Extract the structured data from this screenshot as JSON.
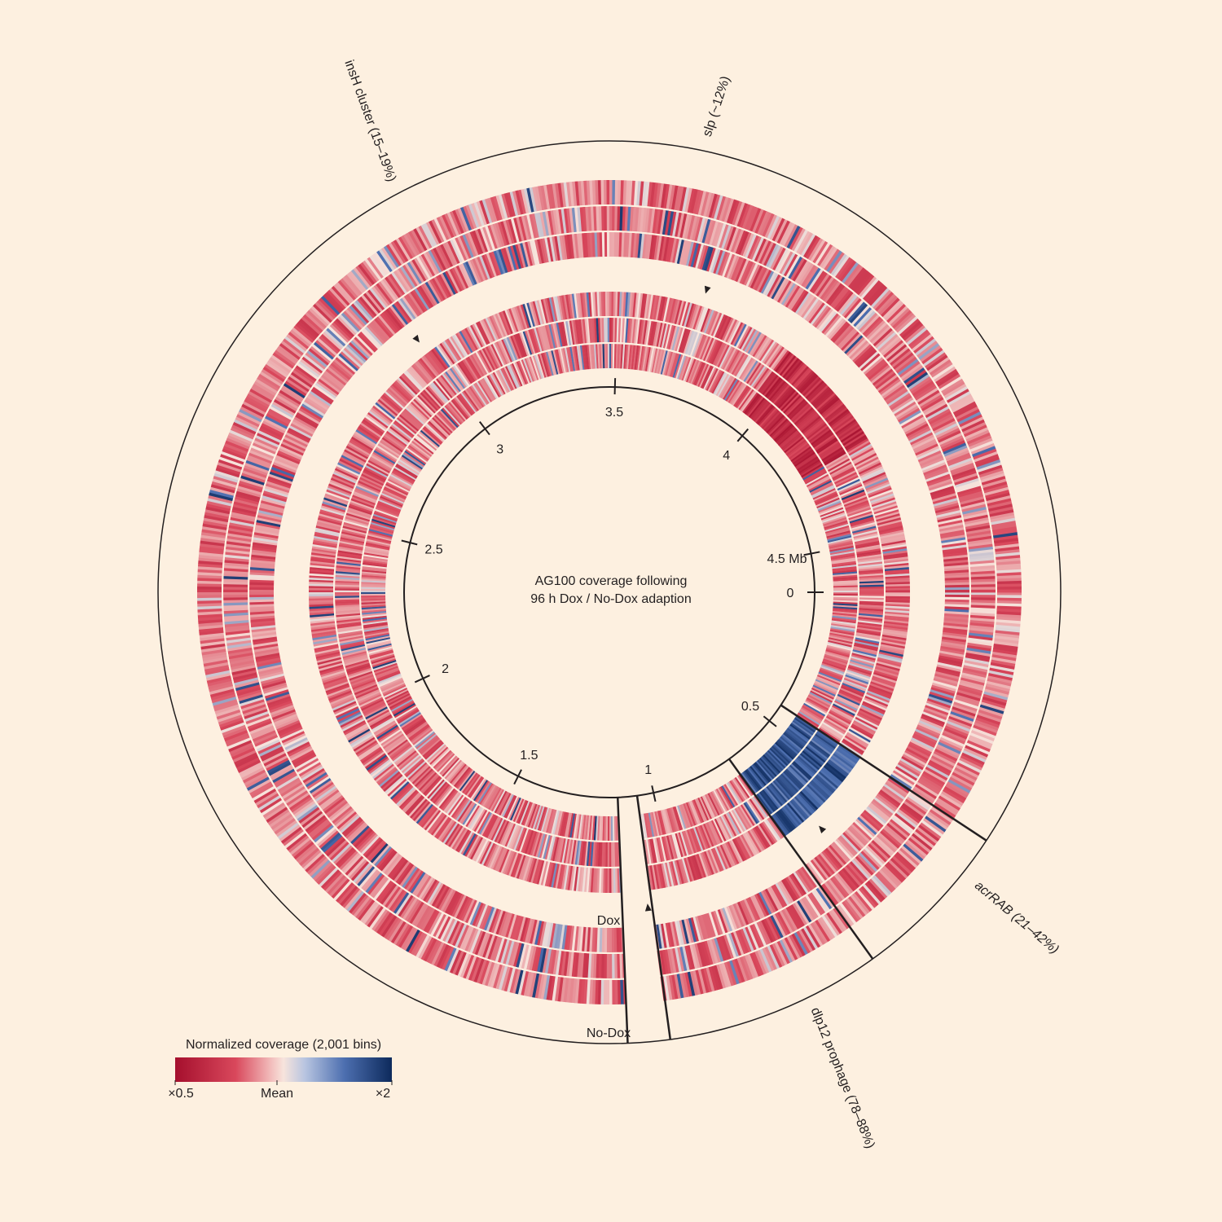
{
  "title": {
    "line1": "AG100 coverage following",
    "line2": "96 h Dox / No-Dox adaption"
  },
  "colors": {
    "background": "#fdf0e0",
    "low": "#a50f2d",
    "mean": "#f7e4dc",
    "high": "#0d2a5c",
    "line": "#231f20"
  },
  "genome": {
    "size_mb": 4.64,
    "orientation": "clockwise, 0 at 3 o'clock",
    "ticks": [
      {
        "pos": 0,
        "label": "0"
      },
      {
        "pos": 0.5,
        "label": "0.5"
      },
      {
        "pos": 1,
        "label": "1"
      },
      {
        "pos": 1.5,
        "label": "1.5"
      },
      {
        "pos": 2,
        "label": "2"
      },
      {
        "pos": 2.5,
        "label": "2.5"
      },
      {
        "pos": 3,
        "label": "3"
      },
      {
        "pos": 3.5,
        "label": "3.5"
      },
      {
        "pos": 4,
        "label": "4"
      },
      {
        "pos": 4.5,
        "label": "4.5 Mb"
      }
    ]
  },
  "rings": {
    "dox_label": "Dox",
    "nodox_label": "No-Dox",
    "dox_replicates": 3,
    "nodox_replicates": 3
  },
  "legend": {
    "title": "Normalized coverage (2,001 bins)",
    "min_label": "×0.5",
    "mid_label": "Mean",
    "max_label": "×2"
  },
  "regions": [
    {
      "name": "acrRAB",
      "label": "acrRAB (21–42%)",
      "start_mb": 0.43,
      "end_mb": 0.7,
      "ring": "dox",
      "change": "amplified"
    },
    {
      "name": "dlp12",
      "label": "dlp12 prophage (78–88%)",
      "start_mb": 1.06,
      "end_mb": 1.13,
      "ring": "both",
      "change": "deleted"
    },
    {
      "name": "insH",
      "label": "insH cluster (15–19%)",
      "pos_mb": 3.0,
      "ring": "nodox",
      "change": "marker"
    },
    {
      "name": "slp",
      "label": "slp (~12%)",
      "pos_mb": 3.71,
      "ring": "nodox",
      "change": "marker"
    }
  ]
}
